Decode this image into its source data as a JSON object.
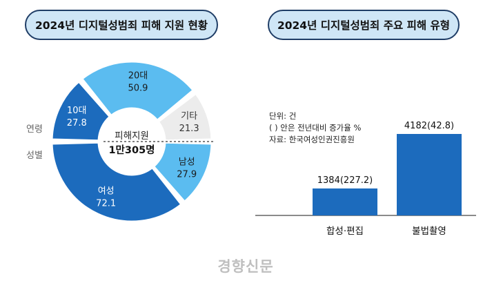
{
  "chart_data": [
    {
      "type": "pie",
      "title": "2024년 디지털성범죄 피해 지원 현황",
      "center_label": "피해지원",
      "center_value": "1만305명",
      "group_labels": {
        "age": "연령",
        "gender": "성별"
      },
      "age": [
        {
          "label": "10대",
          "value": 27.8,
          "color": "#1c6bbd"
        },
        {
          "label": "20대",
          "value": 50.9,
          "color": "#5bbcf0"
        },
        {
          "label": "기타",
          "value": 21.3,
          "color": "#ececec"
        }
      ],
      "gender": [
        {
          "label": "남성",
          "value": 27.9,
          "color": "#5bbcf0"
        },
        {
          "label": "여성",
          "value": 72.1,
          "color": "#1c6bbd"
        }
      ]
    },
    {
      "type": "bar",
      "title": "2024년 디지털성범죄 주요 피해 유형",
      "notes": [
        "단위: 건",
        "( ) 안은 전년대비 증가율 %",
        "자료: 한국여성인권진흥원"
      ],
      "categories": [
        "합성·편집",
        "불법촬영"
      ],
      "values": [
        1384,
        4182
      ],
      "growth": [
        227.2,
        42.8
      ],
      "value_labels": [
        "1384(227.2)",
        "4182(42.8)"
      ],
      "color": "#1c6bbd"
    }
  ],
  "watermark": "경향신문"
}
